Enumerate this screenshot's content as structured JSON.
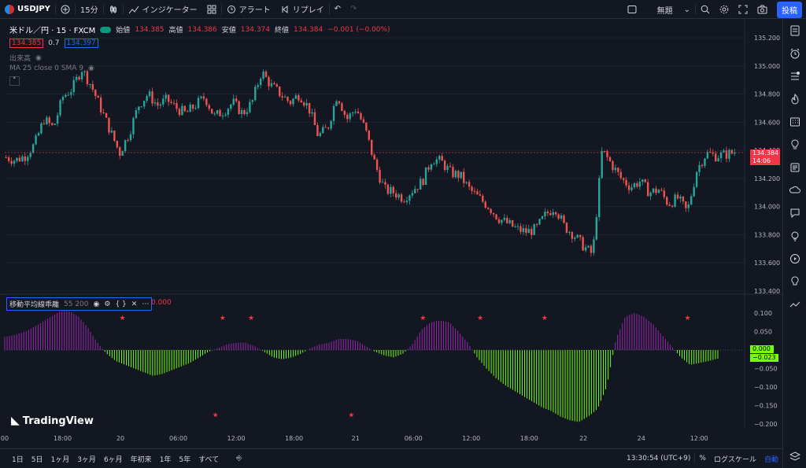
{
  "topbar": {
    "symbol": "USDJPY",
    "interval": "15分",
    "indicators_label": "インジケーター",
    "alert_label": "アラート",
    "replay_label": "リプレイ",
    "layout_name": "無題",
    "post_label": "投稿"
  },
  "legend": {
    "title": "米ドル／円 · 15 · FXCM",
    "open_label": "始値",
    "open": "134.385",
    "high_label": "高値",
    "high": "134.386",
    "low_label": "安値",
    "low": "134.374",
    "close_label": "終値",
    "close": "134.384",
    "change": "−0.001 (−0.00%)",
    "sell_price": "134.385",
    "spread": "0.7",
    "buy_price": "134.397",
    "volume_label": "出来高",
    "ma_label": "MA 25 close 0 SMA 9"
  },
  "price_axis": {
    "ticks": [
      "135.200",
      "135.000",
      "134.800",
      "134.600",
      "134.400",
      "134.200",
      "134.000",
      "133.800",
      "133.600",
      "133.400"
    ],
    "current_price": "134.384",
    "countdown": "14:06"
  },
  "indicator": {
    "name": "移動平均線乖離",
    "params": "55 200",
    "value": "0.000",
    "ticks": [
      "0.100",
      "0.050",
      "0.000",
      "−0.050",
      "−0.100",
      "−0.150",
      "−0.200"
    ],
    "current_a": "0.000",
    "current_b": "−0.023"
  },
  "time_axis": {
    "ticks": [
      "00",
      "18:00",
      "20",
      "06:00",
      "12:00",
      "18:00",
      "21",
      "06:00",
      "12:00",
      "18:00",
      "22",
      "24",
      "12:00"
    ]
  },
  "bottombar": {
    "ranges": [
      "1日",
      "5日",
      "1ヶ月",
      "3ヶ月",
      "6ヶ月",
      "年初来",
      "1年",
      "5年",
      "すべて"
    ],
    "clock": "13:30:54 (UTC+9)",
    "percent": "%",
    "log_scale": "ログスケール",
    "auto": "自動"
  },
  "watermark": "TradingView",
  "colors": {
    "background": "#131722",
    "up": "#26a69a",
    "down": "#ef5350",
    "hist_positive": "#9c27b0",
    "hist_negative": "#76ff03",
    "accent": "#2962ff"
  },
  "chart_data": {
    "type": "candlestick",
    "ylim": [
      133.4,
      135.2
    ],
    "close_path": [
      134.35,
      134.33,
      134.36,
      134.44,
      134.62,
      134.56,
      134.78,
      134.84,
      134.98,
      134.86,
      134.7,
      134.54,
      134.38,
      134.52,
      134.72,
      134.8,
      134.72,
      134.76,
      134.7,
      134.66,
      134.72,
      134.78,
      134.64,
      134.68,
      134.74,
      134.66,
      134.74,
      134.96,
      134.86,
      134.8,
      134.74,
      134.8,
      134.7,
      134.5,
      134.56,
      134.8,
      134.62,
      134.7,
      134.54,
      134.3,
      134.12,
      134.1,
      134.06,
      134.12,
      134.18,
      134.34,
      134.32,
      134.24,
      134.22,
      134.12,
      134.06,
      134.0,
      133.92,
      133.88,
      133.84,
      133.82,
      133.84,
      133.94,
      134.0,
      133.86,
      133.8,
      133.72,
      133.66,
      134.4,
      134.3,
      134.2,
      134.14,
      134.18,
      134.1,
      134.12,
      134.02,
      134.06,
      133.96,
      134.26,
      134.38,
      134.36,
      134.37,
      134.384
    ],
    "indicator_histogram": [
      0.035,
      0.04,
      0.048,
      0.06,
      0.075,
      0.09,
      0.105,
      0.105,
      0.09,
      0.06,
      0.02,
      -0.01,
      -0.03,
      -0.04,
      -0.05,
      -0.06,
      -0.07,
      -0.065,
      -0.055,
      -0.045,
      -0.035,
      -0.02,
      -0.005,
      0.005,
      0.015,
      0.02,
      0.02,
      0.01,
      -0.005,
      -0.02,
      -0.025,
      -0.02,
      -0.01,
      0.005,
      0.015,
      0.02,
      0.03,
      0.03,
      0.025,
      0.01,
      -0.005,
      -0.015,
      -0.02,
      -0.01,
      0.015,
      0.055,
      0.075,
      0.08,
      0.075,
      0.05,
      0.02,
      -0.02,
      -0.05,
      -0.075,
      -0.095,
      -0.11,
      -0.125,
      -0.14,
      -0.155,
      -0.165,
      -0.18,
      -0.19,
      -0.195,
      -0.18,
      -0.16,
      -0.1,
      0.03,
      0.09,
      0.1,
      0.09,
      0.07,
      0.04,
      0.01,
      -0.02,
      -0.04,
      -0.035,
      -0.03,
      -0.023
    ],
    "stars_top_x_index": [
      16,
      30,
      34,
      58,
      66,
      75,
      95
    ],
    "stars_bottom_x_index": [
      29,
      48
    ]
  }
}
